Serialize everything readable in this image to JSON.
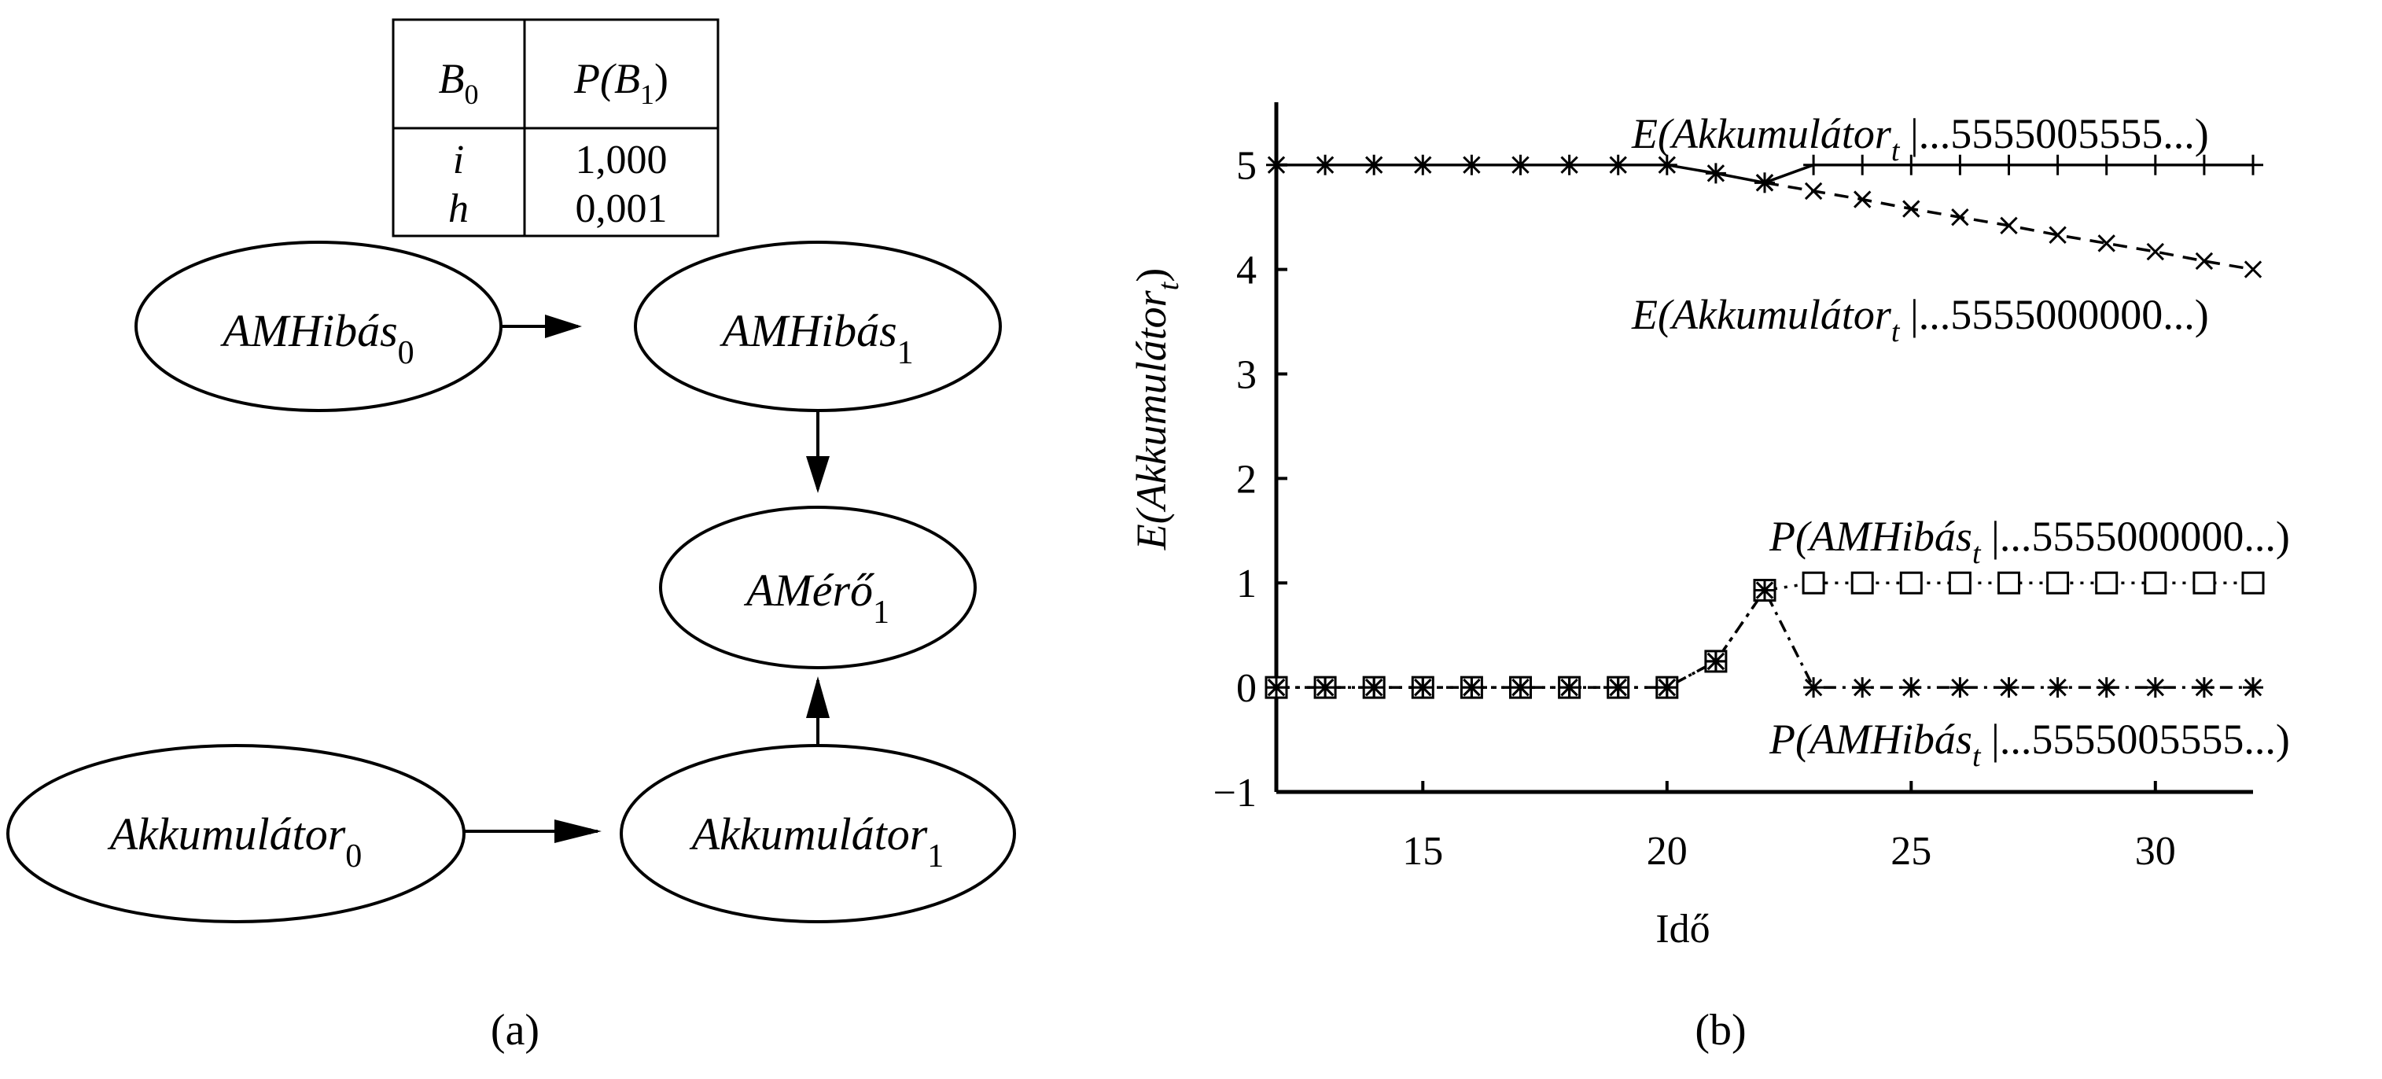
{
  "panel_a": {
    "caption": "(a)",
    "cpt_table": {
      "header_left": {
        "base": "B",
        "sub": "0"
      },
      "header_right": {
        "pre": "P(",
        "base": "B",
        "sub": "1",
        "post": ")"
      },
      "rows": [
        {
          "state": "i",
          "prob": "1,000"
        },
        {
          "state": "h",
          "prob": "0,001"
        }
      ]
    },
    "nodes": {
      "amhibas0": {
        "base": "AMHibás",
        "sub": "0"
      },
      "amhibas1": {
        "base": "AMHibás",
        "sub": "1"
      },
      "amero1": {
        "base": "AMérő",
        "sub": "1"
      },
      "akk0": {
        "base": "Akkumulátor",
        "sub": "0"
      },
      "akk1": {
        "base": "Akkumulátor",
        "sub": "1"
      }
    }
  },
  "panel_b": {
    "caption": "(b)"
  },
  "chart_data": {
    "type": "line",
    "xlabel": "Idő",
    "ylabel": {
      "pre": "E(",
      "base": "Akkumulátor",
      "sub": "t",
      "post": ")"
    },
    "xlim": [
      12,
      32
    ],
    "ylim": [
      -1,
      5.6
    ],
    "xticks": [
      15,
      20,
      25,
      30
    ],
    "yticks": [
      {
        "v": 5,
        "label": "5"
      },
      {
        "v": 4,
        "label": "4"
      },
      {
        "v": 3,
        "label": "3"
      },
      {
        "v": 2,
        "label": "2"
      },
      {
        "v": 1,
        "label": "1"
      },
      {
        "v": 0,
        "label": "0"
      },
      {
        "v": -1,
        "label": "−1"
      }
    ],
    "grid": false,
    "series": [
      {
        "label": {
          "pre": "E(",
          "base": "Akkumulátor",
          "sub": "t",
          "post": " |...5555005555...)"
        },
        "style": "solid",
        "marker_before": "asterisk",
        "marker_after": "plus",
        "x": [
          12,
          13,
          14,
          15,
          16,
          17,
          18,
          19,
          20,
          21,
          22,
          23,
          24,
          25,
          26,
          27,
          28,
          29,
          30,
          31,
          32
        ],
        "y": [
          5,
          5,
          5,
          5,
          5,
          5,
          5,
          5,
          5,
          4.92,
          4.83,
          5,
          5,
          5,
          5,
          5,
          5,
          5,
          5,
          5,
          5
        ]
      },
      {
        "label": {
          "pre": "E(",
          "base": "Akkumulátor",
          "sub": "t",
          "post": " |...5555000000...)"
        },
        "style": "dashed",
        "marker": "x",
        "x": [
          22,
          23,
          24,
          25,
          26,
          27,
          28,
          29,
          30,
          31,
          32
        ],
        "y": [
          4.83,
          4.75,
          4.67,
          4.58,
          4.5,
          4.42,
          4.33,
          4.25,
          4.17,
          4.08,
          4.0
        ]
      },
      {
        "label": {
          "pre": "P(",
          "base": "AMHibás",
          "sub": "t",
          "post": " |...5555000000...)"
        },
        "style": "dotted",
        "marker": "square",
        "x": [
          12,
          13,
          14,
          15,
          16,
          17,
          18,
          19,
          20,
          21,
          22,
          23,
          24,
          25,
          26,
          27,
          28,
          29,
          30,
          31,
          32
        ],
        "y": [
          0,
          0,
          0,
          0,
          0,
          0,
          0,
          0,
          0,
          0.25,
          0.93,
          1,
          1,
          1,
          1,
          1,
          1,
          1,
          1,
          1,
          1
        ]
      },
      {
        "label": {
          "pre": "P(",
          "base": "AMHibás",
          "sub": "t",
          "post": " |...5555005555...)"
        },
        "style": "dashdot",
        "marker": "asterisk",
        "x": [
          12,
          13,
          14,
          15,
          16,
          17,
          18,
          19,
          20,
          21,
          22,
          23,
          24,
          25,
          26,
          27,
          28,
          29,
          30,
          31,
          32
        ],
        "y": [
          0,
          0,
          0,
          0,
          0,
          0,
          0,
          0,
          0,
          0.25,
          0.93,
          0,
          0,
          0,
          0,
          0,
          0,
          0,
          0,
          0,
          0
        ]
      }
    ]
  }
}
